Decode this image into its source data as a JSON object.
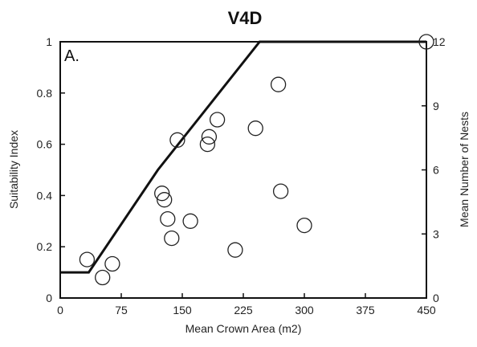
{
  "chart_data": {
    "type": "scatter",
    "title": "V4D",
    "panel_label": "A.",
    "xlabel": "Mean Crown Area (m2)",
    "ylabel": "Suitability Index",
    "y2label": "Mean Number of Nests",
    "xlim": [
      0,
      450
    ],
    "ylim": [
      0,
      1
    ],
    "y2lim": [
      0,
      12
    ],
    "x_ticks": [
      "0",
      "75",
      "150",
      "225",
      "300",
      "375",
      "450"
    ],
    "y_ticks": [
      "0",
      "0.2",
      "0.4",
      "0.6",
      "0.8",
      "1"
    ],
    "y2_ticks": [
      "0",
      "3",
      "6",
      "9",
      "12"
    ],
    "grid": false,
    "series": [
      {
        "kind": "line",
        "x": [
          0,
          35,
          120,
          245,
          450
        ],
        "y": [
          0.1,
          0.1,
          0.5,
          1.0,
          1.0
        ],
        "color": "#111111"
      },
      {
        "kind": "scatter",
        "axis": "right",
        "x": [
          33,
          52,
          64,
          125,
          128,
          132,
          137,
          144,
          160,
          181,
          183,
          193,
          215,
          240,
          268,
          271,
          300,
          450
        ],
        "y": [
          1.8,
          0.96,
          1.6,
          4.9,
          4.6,
          3.7,
          2.8,
          7.4,
          3.6,
          7.2,
          7.55,
          8.35,
          2.25,
          7.95,
          10.0,
          5.0,
          3.4,
          12.0
        ],
        "marker": "open-circle",
        "color": "#222222"
      }
    ]
  }
}
